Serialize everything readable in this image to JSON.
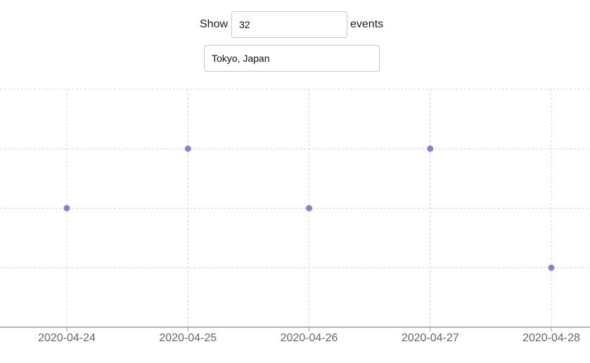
{
  "controls": {
    "show_label": "Show",
    "count_value": "32",
    "events_label": "events",
    "location_value": "Tokyo, Japan"
  },
  "colors": {
    "point": "#8a7fd6",
    "grid": "#d4d4d4",
    "axis": "#999999",
    "tick_text": "#666666"
  },
  "chart_data": {
    "type": "scatter",
    "x": [
      "2020-04-24",
      "2020-04-25",
      "2020-04-26",
      "2020-04-27",
      "2020-04-28"
    ],
    "y": [
      2,
      3,
      2,
      3,
      1
    ],
    "ylim": [
      0,
      4
    ],
    "x_tick_labels": [
      "2020-04-24",
      "2020-04-25",
      "2020-04-26",
      "2020-04-27",
      "2020-04-28"
    ],
    "title": "",
    "xlabel": "",
    "ylabel": "",
    "grid": true,
    "y_tick_labels_shown": false
  }
}
